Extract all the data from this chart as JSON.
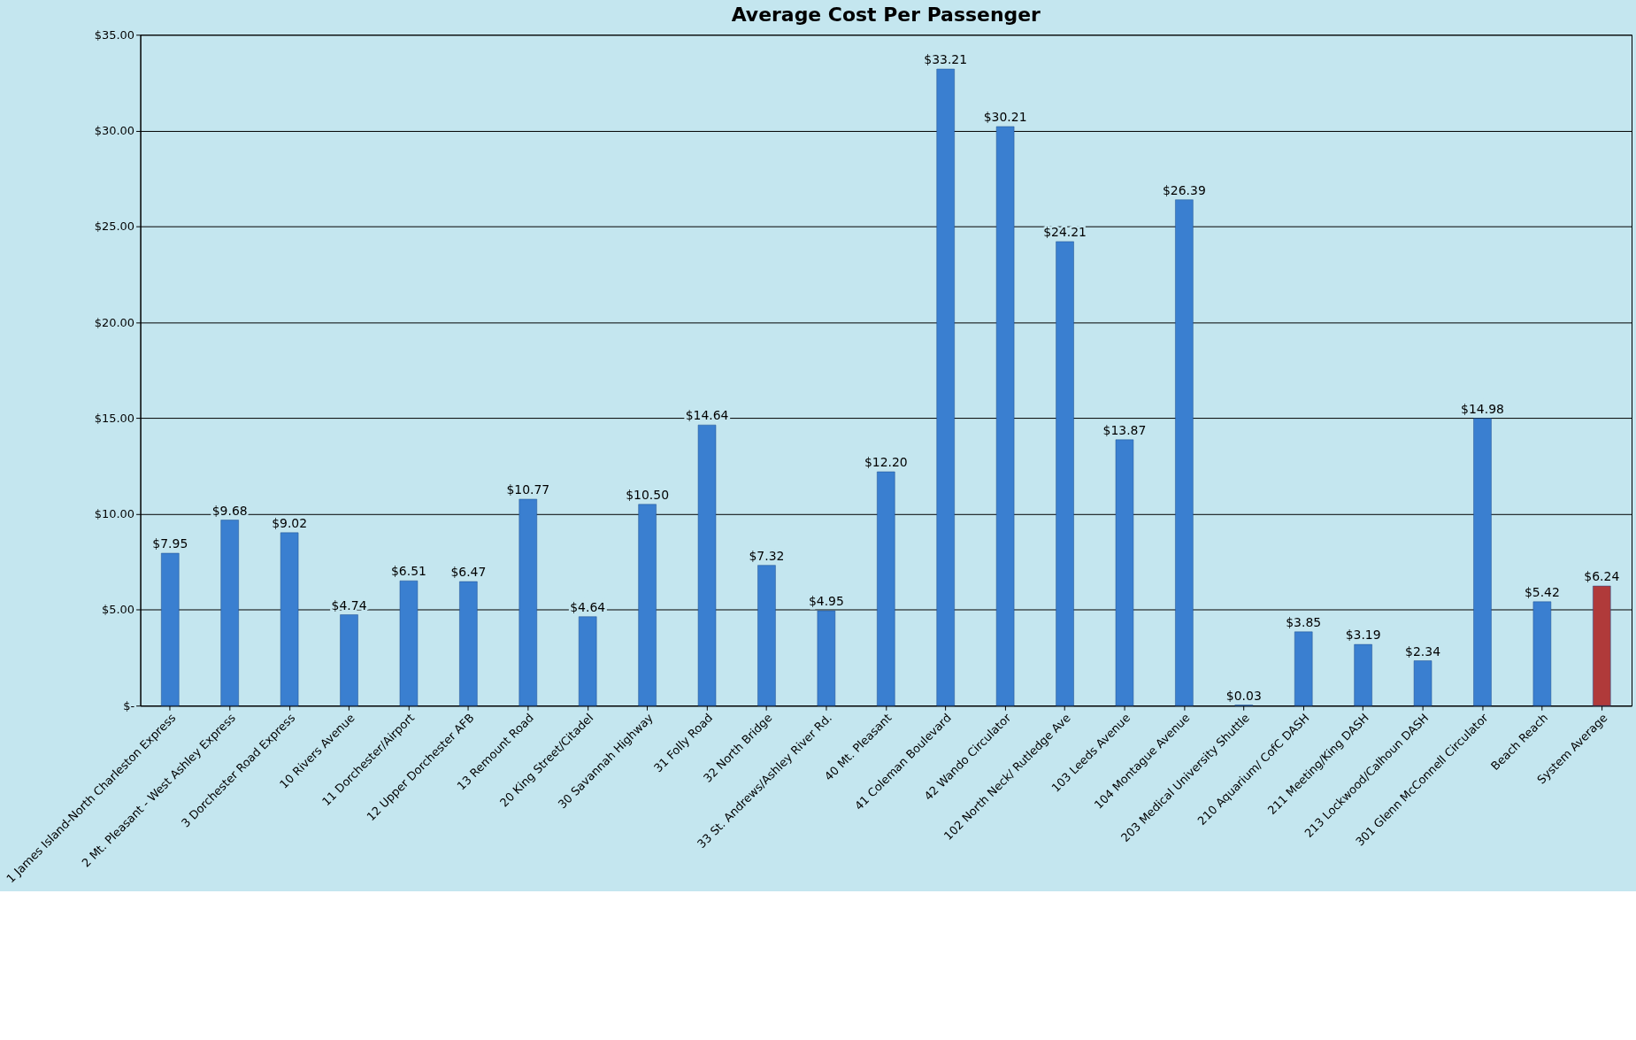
{
  "chart_data": {
    "type": "bar",
    "title": "Average Cost Per Passenger",
    "categories": [
      "1 James Island-North Charleston Express",
      "2 Mt. Pleasant - West Ashley Express",
      "3 Dorchester Road Express",
      "10 Rivers Avenue",
      "11 Dorchester/Airport",
      "12 Upper Dorchester AFB",
      "13 Remount Road",
      "20 King Street/Citadel",
      "30 Savannah Highway",
      "31 Folly Road",
      "32 North Bridge",
      "33 St. Andrews/Ashley River Rd.",
      "40 Mt. Pleasant",
      "41 Coleman Boulevard",
      "42 Wando Circulator",
      "102 North Neck/ Rutledge Ave",
      "103 Leeds Avenue",
      "104 Montague Avenue",
      "203 Medical University Shuttle",
      "210 Aquarium/ CofC DASH",
      "211 Meeting/King DASH",
      "213 Lockwood/Calhoun DASH",
      "301 Glenn McConnell Circulator",
      "Beach Reach",
      "System Average"
    ],
    "values": [
      7.95,
      9.68,
      9.02,
      4.74,
      6.51,
      6.47,
      10.77,
      4.64,
      10.5,
      14.64,
      7.32,
      4.95,
      12.2,
      33.21,
      30.21,
      24.21,
      13.87,
      26.39,
      0.03,
      3.85,
      3.19,
      2.34,
      14.98,
      5.42,
      6.24
    ],
    "value_labels": [
      "$7.95",
      "$9.68",
      "$9.02",
      "$4.74",
      "$6.51",
      "$6.47",
      "$10.77",
      "$4.64",
      "$10.50",
      "$14.64",
      "$7.32",
      "$4.95",
      "$12.20",
      "$33.21",
      "$30.21",
      "$24.21",
      "$13.87",
      "$26.39",
      "$0.03",
      "$3.85",
      "$3.19",
      "$2.34",
      "$14.98",
      "$5.42",
      "$6.24"
    ],
    "colors": [
      "#3a7fd0",
      "#3a7fd0",
      "#3a7fd0",
      "#3a7fd0",
      "#3a7fd0",
      "#3a7fd0",
      "#3a7fd0",
      "#3a7fd0",
      "#3a7fd0",
      "#3a7fd0",
      "#3a7fd0",
      "#3a7fd0",
      "#3a7fd0",
      "#3a7fd0",
      "#3a7fd0",
      "#3a7fd0",
      "#3a7fd0",
      "#3a7fd0",
      "#3a7fd0",
      "#3a7fd0",
      "#3a7fd0",
      "#3a7fd0",
      "#3a7fd0",
      "#3a7fd0",
      "#b03a3a"
    ],
    "ylim": [
      0,
      35
    ],
    "yticks": [
      {
        "value": 0,
        "label": "$-"
      },
      {
        "value": 5,
        "label": "$5.00"
      },
      {
        "value": 10,
        "label": "$10.00"
      },
      {
        "value": 15,
        "label": "$15.00"
      },
      {
        "value": 20,
        "label": "$20.00"
      },
      {
        "value": 25,
        "label": "$25.00"
      },
      {
        "value": 30,
        "label": "$30.00"
      },
      {
        "value": 35,
        "label": "$35.00"
      }
    ],
    "grid": "y"
  }
}
